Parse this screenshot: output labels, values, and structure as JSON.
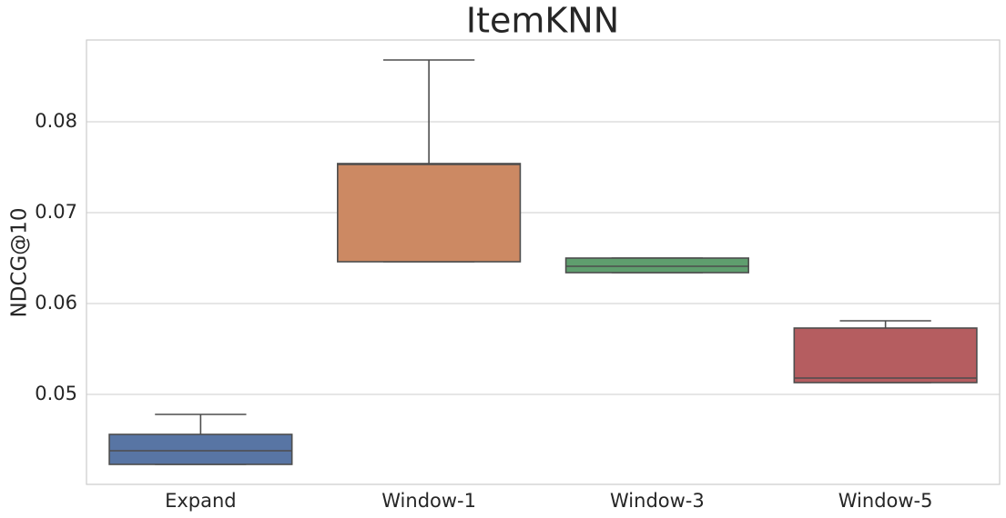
{
  "chart_data": {
    "type": "box",
    "title": "ItemKNN",
    "y_label": "NDCG@10",
    "categories": [
      "Expand",
      "Window-1",
      "Window-3",
      "Window-5"
    ],
    "boxes": [
      {
        "min": 0.0423,
        "q1": 0.0423,
        "median": 0.0438,
        "q3": 0.0456,
        "max": 0.0478
      },
      {
        "min": 0.0646,
        "q1": 0.0646,
        "median": 0.0753,
        "q3": 0.0754,
        "max": 0.0868
      },
      {
        "min": 0.0634,
        "q1": 0.0634,
        "median": 0.0641,
        "q3": 0.065,
        "max": 0.065
      },
      {
        "min": 0.0513,
        "q1": 0.0513,
        "median": 0.0518,
        "q3": 0.0573,
        "max": 0.0581
      }
    ],
    "colors": [
      "#5875a4",
      "#cc8963",
      "#5f9e6e",
      "#b55d60"
    ],
    "ylim": [
      0.0401,
      0.089
    ],
    "yticks": [
      0.05,
      0.06,
      0.07,
      0.08
    ],
    "grid": true
  }
}
